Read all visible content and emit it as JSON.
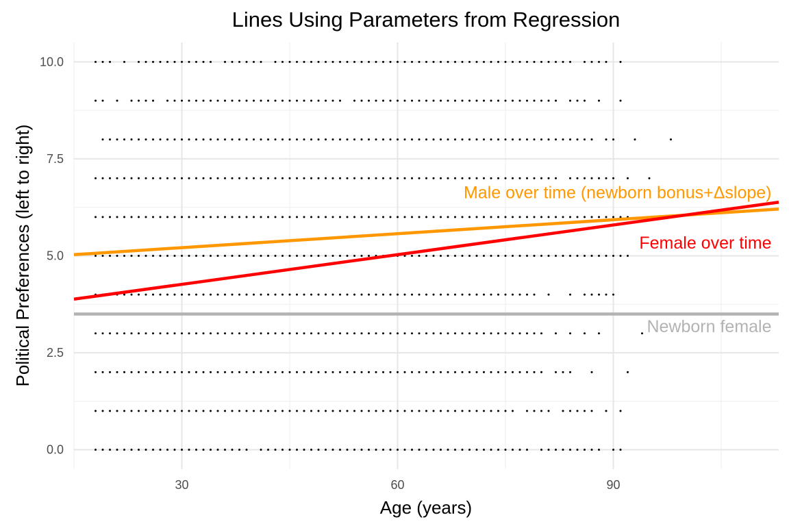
{
  "chart_data": {
    "type": "scatter",
    "title": "Lines Using Parameters from Regression",
    "xlabel": "Age (years)",
    "ylabel": "Political Preferences (left to right)",
    "xlim": [
      15,
      113
    ],
    "ylim": [
      -0.5,
      10.5
    ],
    "x_ticks": [
      30,
      60,
      90
    ],
    "x_tick_labels": [
      "30",
      "60",
      "90"
    ],
    "y_ticks": [
      0,
      2.5,
      5,
      7.5,
      10
    ],
    "y_tick_labels": [
      "0.0",
      "2.5",
      "5.0",
      "7.5",
      "10.0"
    ],
    "grid": true,
    "points": {
      "color": "#000000",
      "rows": [
        {
          "y": 10,
          "segments": [
            [
              18,
              20
            ],
            [
              22,
              22
            ],
            [
              24,
              34
            ],
            [
              36,
              41
            ],
            [
              43,
              84
            ],
            [
              86,
              89
            ],
            [
              91,
              91
            ]
          ]
        },
        {
          "y": 9,
          "segments": [
            [
              18,
              19
            ],
            [
              21,
              21
            ],
            [
              23,
              26
            ],
            [
              28,
              52
            ],
            [
              54,
              82
            ],
            [
              84,
              86
            ],
            [
              88,
              88
            ],
            [
              91,
              91
            ]
          ]
        },
        {
          "y": 8,
          "segments": [
            [
              19,
              87
            ],
            [
              89,
              90
            ],
            [
              93,
              93
            ],
            [
              98,
              98
            ]
          ]
        },
        {
          "y": 7,
          "segments": [
            [
              18,
              82
            ],
            [
              84,
              90
            ],
            [
              92,
              92
            ],
            [
              95,
              95
            ]
          ]
        },
        {
          "y": 6,
          "segments": [
            [
              18,
              92
            ]
          ]
        },
        {
          "y": 5,
          "segments": [
            [
              18,
              92
            ]
          ]
        },
        {
          "y": 4,
          "segments": [
            [
              18,
              79
            ],
            [
              81,
              81
            ],
            [
              84,
              84
            ],
            [
              86,
              90
            ]
          ]
        },
        {
          "y": 3,
          "segments": [
            [
              18,
              80
            ],
            [
              82,
              82
            ],
            [
              84,
              84
            ],
            [
              86,
              86
            ],
            [
              88,
              88
            ],
            [
              94,
              94
            ]
          ]
        },
        {
          "y": 2,
          "segments": [
            [
              18,
              80
            ],
            [
              82,
              84
            ],
            [
              87,
              87
            ],
            [
              92,
              92
            ]
          ]
        },
        {
          "y": 1,
          "segments": [
            [
              18,
              76
            ],
            [
              78,
              81
            ],
            [
              83,
              87
            ],
            [
              89,
              89
            ],
            [
              91,
              91
            ]
          ]
        },
        {
          "y": 0,
          "segments": [
            [
              18,
              39
            ],
            [
              41,
              78
            ],
            [
              80,
              88
            ],
            [
              90,
              91
            ]
          ]
        }
      ]
    },
    "series": [
      {
        "name": "Male over time (newborn bonus+Δslope)",
        "color": "#ff9800",
        "intercept": 4.85,
        "slope": 0.012
      },
      {
        "name": "Female over time",
        "color": "#ff0000",
        "intercept": 3.5,
        "slope": 0.0255
      },
      {
        "name": "Newborn female",
        "color": "#b3b3b3",
        "intercept": 3.5,
        "slope": 0
      }
    ],
    "annotations": [
      {
        "text": "Male over time (newborn bonus+Δslope)",
        "x": 112,
        "y": 6.6,
        "anchor": "end",
        "color": "#ff9800"
      },
      {
        "text": "Female over time",
        "x": 112,
        "y": 5.3,
        "anchor": "end",
        "color": "#ff0000"
      },
      {
        "text": "Newborn female",
        "x": 112,
        "y": 3.15,
        "anchor": "end",
        "color": "#b3b3b3"
      }
    ]
  }
}
